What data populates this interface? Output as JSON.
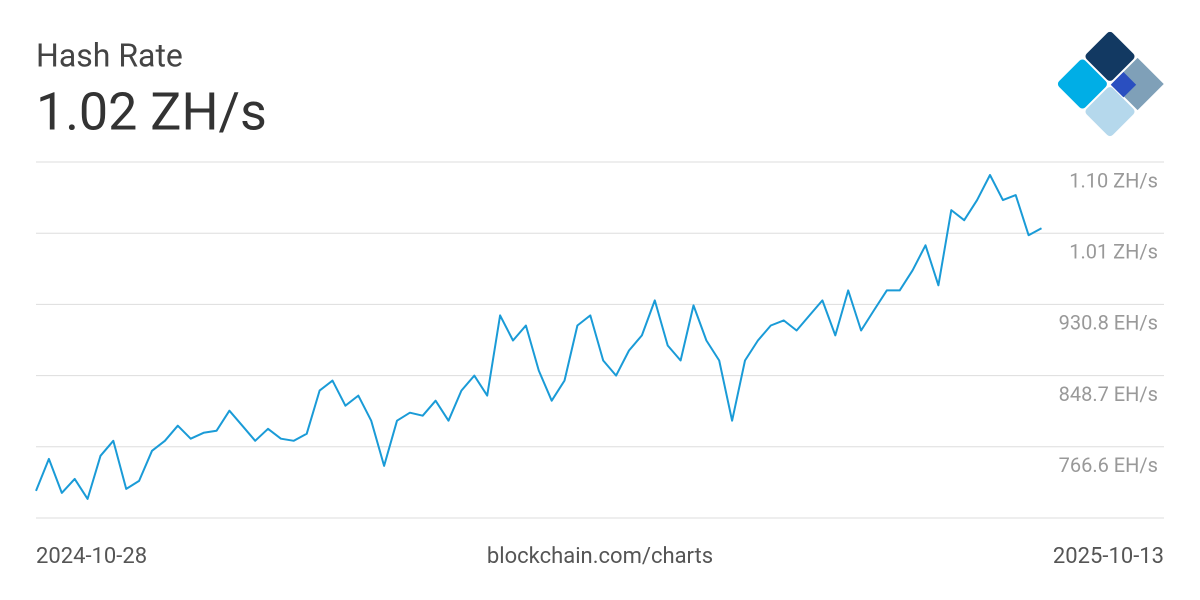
{
  "chart_data": {
    "type": "line",
    "title": "Hash Rate",
    "subtitle": "1.02 ZH/s",
    "source": "blockchain.com/charts",
    "color": "#1a9bd7",
    "grid": true,
    "xlim": [
      "2024-10-28",
      "2025-10-13"
    ],
    "xticks": [
      "2024-10-28",
      "2025-10-13"
    ],
    "ylim": [
      684.5,
      1095
    ],
    "yticks": [
      {
        "value": 766.6,
        "label": "766.6 EH/s"
      },
      {
        "value": 848.7,
        "label": "848.7 EH/s"
      },
      {
        "value": 930.8,
        "label": "930.8 EH/s"
      },
      {
        "value": 1012.9,
        "label": "1.01 ZH/s"
      },
      {
        "value": 1095,
        "label": "1.10 ZH/s"
      }
    ],
    "x": [
      "2024-10-28",
      "2024-11-01",
      "2024-11-05",
      "2024-11-09",
      "2024-11-13",
      "2024-11-17",
      "2024-11-21",
      "2024-11-25",
      "2024-11-29",
      "2024-12-03",
      "2024-12-07",
      "2024-12-11",
      "2024-12-15",
      "2024-12-19",
      "2024-12-23",
      "2024-12-27",
      "2024-12-31",
      "2025-01-04",
      "2025-01-08",
      "2025-01-12",
      "2025-01-16",
      "2025-01-20",
      "2025-01-24",
      "2025-01-28",
      "2025-02-01",
      "2025-02-05",
      "2025-02-09",
      "2025-02-13",
      "2025-02-17",
      "2025-02-21",
      "2025-02-25",
      "2025-03-01",
      "2025-03-05",
      "2025-03-09",
      "2025-03-13",
      "2025-03-17",
      "2025-03-21",
      "2025-03-25",
      "2025-03-29",
      "2025-04-02",
      "2025-04-06",
      "2025-04-10",
      "2025-04-14",
      "2025-04-18",
      "2025-04-22",
      "2025-04-26",
      "2025-04-30",
      "2025-05-04",
      "2025-05-08",
      "2025-05-12",
      "2025-05-16",
      "2025-05-20",
      "2025-05-24",
      "2025-05-28",
      "2025-06-01",
      "2025-06-05",
      "2025-06-09",
      "2025-06-13",
      "2025-06-17",
      "2025-06-21",
      "2025-06-25",
      "2025-06-29",
      "2025-07-03",
      "2025-07-07",
      "2025-07-11",
      "2025-07-15",
      "2025-07-19",
      "2025-07-23",
      "2025-07-27",
      "2025-07-31",
      "2025-08-04",
      "2025-08-08",
      "2025-08-12",
      "2025-08-16",
      "2025-08-20",
      "2025-08-24",
      "2025-08-28",
      "2025-09-01",
      "2025-09-05"
    ],
    "values": [
      715.7,
      752.7,
      713.4,
      729.6,
      706.5,
      756.2,
      773.5,
      718.0,
      727.3,
      762.0,
      773.5,
      790.9,
      775.9,
      782.8,
      785.1,
      808.2,
      790.9,
      773.5,
      787.4,
      775.9,
      773.5,
      781.6,
      831.4,
      842.9,
      814.0,
      825.6,
      796.7,
      744.6,
      796.7,
      805.9,
      802.5,
      819.8,
      796.7,
      831.4,
      848.7,
      825.6,
      918.1,
      889.2,
      906.5,
      854.5,
      819.8,
      842.9,
      906.5,
      918.1,
      866.1,
      848.7,
      877.6,
      895.0,
      935.4,
      883.4,
      866.1,
      929.6,
      889.2,
      866.1,
      796.7,
      866.1,
      889.2,
      906.5,
      912.3,
      900.7,
      918.1,
      935.4,
      895.0,
      947.0,
      900.7,
      923.9,
      947.0,
      947.0,
      970.1,
      999.0,
      952.8,
      1039.5,
      1027.9,
      1051.1,
      1080.0,
      1051.1,
      1056.8,
      1010.6,
      1018.7
    ]
  }
}
